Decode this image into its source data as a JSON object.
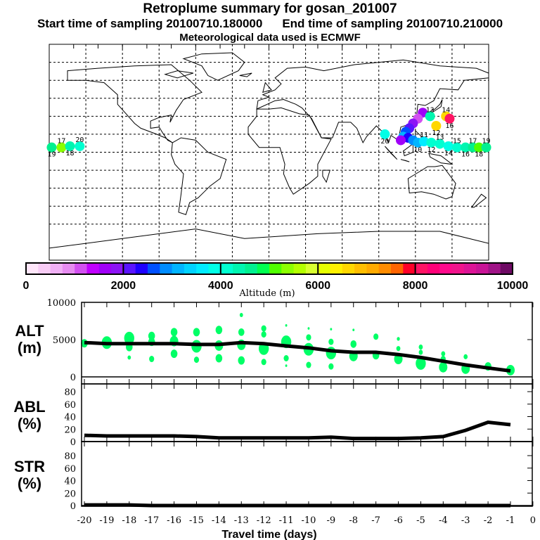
{
  "header": {
    "title": "Retroplume summary for gosan_201007",
    "start": "Start time of sampling 20100710.180000",
    "end": "End time of sampling 20100710.210000",
    "met": "Meteorological data used is ECMWF"
  },
  "colorbar": {
    "label": "Altitude (m)",
    "ticks": [
      "0",
      "2000",
      "4000",
      "6000",
      "8000",
      "10000"
    ],
    "colors": [
      "#ffe6fa",
      "#f8ccf5",
      "#f0b0f5",
      "#e68cf0",
      "#d250f0",
      "#c000ff",
      "#a000f8",
      "#8c14f5",
      "#5a14ff",
      "#1e00ff",
      "#0050ff",
      "#008cff",
      "#00b4ff",
      "#00d2ff",
      "#00ebff",
      "#00ffe6",
      "#00ffd0",
      "#00f5b0",
      "#00f090",
      "#00ff50",
      "#50ff00",
      "#8cff00",
      "#b4ff00",
      "#d8ff30",
      "#e6ff00",
      "#fff000",
      "#ffd700",
      "#ffbe00",
      "#ffaa00",
      "#ff8c00",
      "#ff6400",
      "#ff0028",
      "#ff1464",
      "#ff0078",
      "#ff0a8c",
      "#f0148c",
      "#dc1496",
      "#c81496",
      "#a01487",
      "#6e0a64"
    ]
  },
  "map": {
    "plume": [
      {
        "lon": 126,
        "lat": 33,
        "alt": 1500,
        "label": ""
      },
      {
        "lon": 122,
        "lat": 28,
        "alt": 1000,
        "label": ""
      },
      {
        "lon": 118,
        "lat": 24,
        "alt": 1800,
        "label": ""
      },
      {
        "lon": 115,
        "lat": 20,
        "alt": 2200,
        "label": ""
      },
      {
        "lon": 112,
        "lat": 17,
        "alt": 2600,
        "label": ""
      },
      {
        "lon": 110,
        "lat": 13,
        "alt": 3000,
        "label": ""
      },
      {
        "lon": 114,
        "lat": 12,
        "alt": 2400,
        "label": ""
      },
      {
        "lon": 118,
        "lat": 10,
        "alt": 2800,
        "label": ""
      },
      {
        "lon": 108,
        "lat": 10,
        "alt": 1700,
        "label": ""
      },
      {
        "lon": 122,
        "lat": 8,
        "alt": 3200,
        "label": "10"
      },
      {
        "lon": 127,
        "lat": 9,
        "alt": 3600,
        "label": "11"
      },
      {
        "lon": 133,
        "lat": 8,
        "alt": 4100,
        "label": "12"
      },
      {
        "lon": 140,
        "lat": 7,
        "alt": 4000,
        "label": "13"
      },
      {
        "lon": 147,
        "lat": 5,
        "alt": 3900,
        "label": "14"
      },
      {
        "lon": 154,
        "lat": 4,
        "alt": 4200,
        "label": "15"
      },
      {
        "lon": 161,
        "lat": 4,
        "alt": 4400,
        "label": "16"
      },
      {
        "lon": 167,
        "lat": 4,
        "alt": 4600,
        "label": "17"
      },
      {
        "lon": 172,
        "lat": 4,
        "alt": 5200,
        "label": "18"
      },
      {
        "lon": 178,
        "lat": 4,
        "alt": 4600,
        "label": "19"
      },
      {
        "lon": -178,
        "lat": 4,
        "alt": 4500,
        "label": "19"
      },
      {
        "lon": -170,
        "lat": 4,
        "alt": 5400,
        "label": "17"
      },
      {
        "lon": -163,
        "lat": 5,
        "alt": 4300,
        "label": "18"
      },
      {
        "lon": -155,
        "lat": 5,
        "alt": 4200,
        "label": "20"
      },
      {
        "lon": 137,
        "lat": 22,
        "alt": 6500,
        "label": "12"
      },
      {
        "lon": 145,
        "lat": 30,
        "alt": 6500,
        "label": "14"
      },
      {
        "lon": 148,
        "lat": 28,
        "alt": 8200,
        "label": "16"
      },
      {
        "lon": 132,
        "lat": 30,
        "alt": 4300,
        "label": "13"
      },
      {
        "lon": 95,
        "lat": 15,
        "alt": 3900,
        "label": "20"
      }
    ]
  },
  "panels": {
    "alt": {
      "label1": "ALT",
      "label2": "(m)",
      "ticks": [
        "10000",
        "5000",
        "0"
      ]
    },
    "abl": {
      "label1": "ABL",
      "label2": "(%)",
      "ticks": [
        "80",
        "60",
        "40",
        "20",
        "0"
      ]
    },
    "str": {
      "label1": "STR",
      "label2": "(%)",
      "ticks": [
        "80",
        "60",
        "40",
        "20",
        "0"
      ]
    },
    "xticks": [
      "-20",
      "-19",
      "-18",
      "-17",
      "-16",
      "-15",
      "-14",
      "-13",
      "-12",
      "-11",
      "-10",
      "-9",
      "-8",
      "-7",
      "-6",
      "-5",
      "-4",
      "-3",
      "-2",
      "-1",
      "0"
    ],
    "xlabel": "Travel time (days)"
  },
  "chart_data": [
    {
      "type": "line",
      "title": "ALT (m)",
      "xlabel": "Travel time (days)",
      "ylabel": "ALT (m)",
      "ylim": [
        0,
        10000
      ],
      "xlim": [
        -20,
        0
      ],
      "x": [
        -20,
        -19,
        -18,
        -17,
        -16,
        -15,
        -14,
        -13,
        -12,
        -11,
        -10,
        -9,
        -8,
        -7,
        -6,
        -5,
        -4,
        -3,
        -2,
        -1
      ],
      "values": [
        4600,
        4450,
        4450,
        4450,
        4450,
        4350,
        4350,
        4600,
        4450,
        4150,
        3900,
        3500,
        3300,
        3300,
        3000,
        2600,
        2100,
        1600,
        1200,
        800
      ],
      "scatter_color": "#00ff66",
      "scatter": [
        [
          -20,
          4500,
          2
        ],
        [
          -19,
          4600,
          3
        ],
        [
          -18,
          5200,
          3
        ],
        [
          -18,
          4000,
          2
        ],
        [
          -18,
          2600,
          1
        ],
        [
          -17,
          5500,
          2
        ],
        [
          -17,
          4700,
          2
        ],
        [
          -17,
          2400,
          1.5
        ],
        [
          -16,
          6000,
          2
        ],
        [
          -16,
          4800,
          2.5
        ],
        [
          -16,
          3100,
          2
        ],
        [
          -15,
          6000,
          2
        ],
        [
          -15,
          4100,
          3
        ],
        [
          -15,
          2300,
          1.5
        ],
        [
          -14,
          6300,
          2
        ],
        [
          -14,
          4200,
          2.5
        ],
        [
          -14,
          2500,
          2
        ],
        [
          -13,
          8300,
          1
        ],
        [
          -13,
          6000,
          1.8
        ],
        [
          -13,
          4300,
          2.5
        ],
        [
          -13,
          2200,
          2
        ],
        [
          -12,
          6500,
          1.5
        ],
        [
          -12,
          5700,
          1.5
        ],
        [
          -12,
          3800,
          3
        ],
        [
          -12,
          2000,
          1.5
        ],
        [
          -11,
          6900,
          0.6
        ],
        [
          -11,
          4700,
          3
        ],
        [
          -11,
          2500,
          1.5
        ],
        [
          -11,
          1500,
          0.6
        ],
        [
          -10,
          6500,
          0.6
        ],
        [
          -10,
          5300,
          1.5
        ],
        [
          -10,
          3700,
          3
        ],
        [
          -10,
          1600,
          1.5
        ],
        [
          -9,
          6400,
          0.6
        ],
        [
          -9,
          4700,
          1.5
        ],
        [
          -9,
          3200,
          3
        ],
        [
          -9,
          1400,
          1.5
        ],
        [
          -8,
          6300,
          0.6
        ],
        [
          -8,
          4400,
          1.8
        ],
        [
          -8,
          2800,
          2.5
        ],
        [
          -7,
          5400,
          1.5
        ],
        [
          -7,
          2900,
          2
        ],
        [
          -6,
          5100,
          0.9
        ],
        [
          -6,
          3800,
          1.2
        ],
        [
          -6,
          2400,
          2.5
        ],
        [
          -5,
          4000,
          1.2
        ],
        [
          -5,
          3300,
          1.2
        ],
        [
          -5,
          1800,
          3
        ],
        [
          -4,
          3100,
          1.2
        ],
        [
          -4,
          2400,
          1.5
        ],
        [
          -4,
          1300,
          2.5
        ],
        [
          -3,
          2700,
          1.2
        ],
        [
          -3,
          1100,
          2.5
        ],
        [
          -2,
          1400,
          2
        ],
        [
          -1,
          900,
          2.5
        ]
      ]
    },
    {
      "type": "line",
      "title": "ABL (%)",
      "xlabel": "Travel time (days)",
      "ylabel": "ABL (%)",
      "ylim": [
        0,
        100
      ],
      "xlim": [
        -20,
        0
      ],
      "x": [
        -20,
        -19,
        -18,
        -17,
        -16,
        -15,
        -14,
        -13,
        -12,
        -11,
        -10,
        -9,
        -8,
        -7,
        -6,
        -5,
        -4,
        -3,
        -2,
        -1
      ],
      "values": [
        10,
        9,
        9,
        9,
        9,
        8,
        6,
        6,
        6,
        6,
        6,
        7,
        5,
        5,
        5,
        6,
        8,
        18,
        31,
        27
      ]
    },
    {
      "type": "line",
      "title": "STR (%)",
      "xlabel": "Travel time (days)",
      "ylabel": "STR (%)",
      "ylim": [
        0,
        100
      ],
      "xlim": [
        -20,
        0
      ],
      "x": [
        -20,
        -19,
        -18,
        -17,
        -16,
        -15,
        -14,
        -13,
        -12,
        -11,
        -10,
        -9,
        -8,
        -7,
        -6,
        -5,
        -4,
        -3,
        -2,
        -1
      ],
      "values": [
        1,
        1,
        1,
        0,
        0,
        0,
        0,
        0,
        0,
        0,
        0,
        0,
        0,
        0,
        0,
        0,
        0,
        0,
        0,
        0
      ]
    }
  ]
}
